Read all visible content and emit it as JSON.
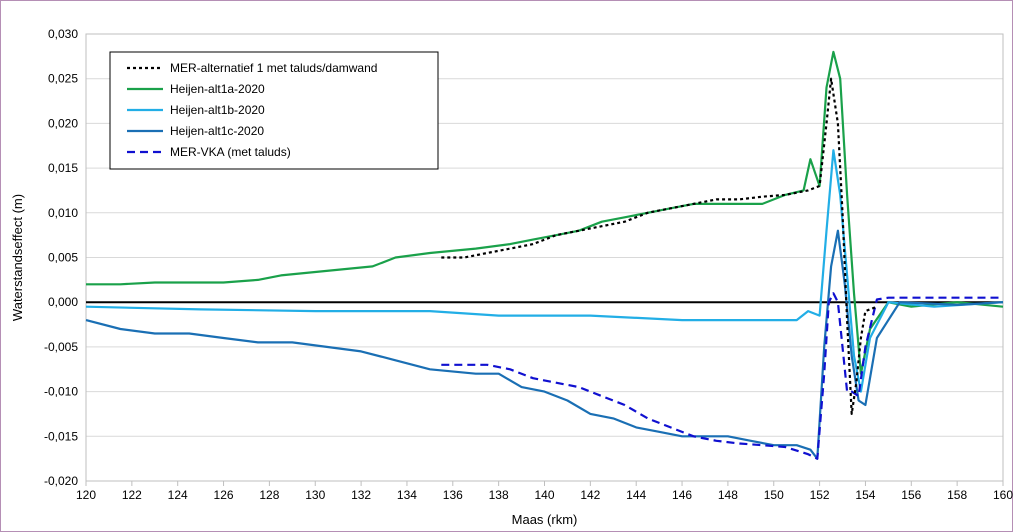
{
  "chart_data": {
    "type": "line",
    "xlabel": "Maas (rkm)",
    "ylabel": "Waterstandseffect (m)",
    "xlim": [
      120,
      160
    ],
    "ylim": [
      -0.02,
      0.03
    ],
    "x_ticks": [
      "120",
      "122",
      "124",
      "126",
      "128",
      "130",
      "132",
      "134",
      "136",
      "138",
      "140",
      "142",
      "144",
      "146",
      "148",
      "150",
      "152",
      "154",
      "156",
      "158",
      "160"
    ],
    "y_ticks": [
      "0,030",
      "0,025",
      "0,020",
      "0,015",
      "0,010",
      "0,005",
      "0,000",
      "-0,005",
      "-0,010",
      "-0,015",
      "-0,020"
    ],
    "grid": "horizontal",
    "legend_position": "top-left",
    "series": [
      {
        "name": "MER-alternatief 1 met taluds/damwand",
        "color": "#000000",
        "dash": "dotted",
        "x": [
          135.5,
          136.5,
          137.5,
          138.5,
          139.5,
          140.5,
          141.5,
          142.5,
          143.5,
          144.5,
          145.5,
          146.5,
          147.5,
          148.5,
          149.5,
          150.5,
          151.5,
          152.0,
          152.3,
          152.5,
          152.8,
          153.0,
          153.2,
          153.4,
          153.6,
          153.8,
          154.0,
          154.5
        ],
        "y": [
          0.005,
          0.005,
          0.0055,
          0.006,
          0.0065,
          0.0075,
          0.008,
          0.0085,
          0.009,
          0.01,
          0.0105,
          0.011,
          0.0115,
          0.0115,
          0.0118,
          0.012,
          0.0125,
          0.013,
          0.02,
          0.025,
          0.02,
          0.01,
          -0.002,
          -0.0125,
          -0.009,
          -0.004,
          -0.001,
          -0.0005
        ]
      },
      {
        "name": "Heijen-alt1a-2020",
        "color": "#1aa14a",
        "dash": "solid",
        "x": [
          120,
          121.5,
          123,
          124.5,
          126,
          127.5,
          128.5,
          130.5,
          132.5,
          133.5,
          135,
          137,
          138.5,
          139.5,
          140.5,
          141.5,
          142.5,
          143.5,
          144.5,
          145.5,
          146.5,
          148,
          149.5,
          150.5,
          151.3,
          151.6,
          152.0,
          152.3,
          152.6,
          152.9,
          153.2,
          153.5,
          153.8,
          154.2,
          155,
          156,
          158,
          160
        ],
        "y": [
          0.002,
          0.002,
          0.0022,
          0.0022,
          0.0022,
          0.0025,
          0.003,
          0.0035,
          0.004,
          0.005,
          0.0055,
          0.006,
          0.0065,
          0.007,
          0.0075,
          0.008,
          0.009,
          0.0095,
          0.01,
          0.0105,
          0.011,
          0.011,
          0.011,
          0.012,
          0.0125,
          0.016,
          0.013,
          0.024,
          0.028,
          0.025,
          0.012,
          0.001,
          -0.008,
          -0.003,
          0,
          -0.0005,
          0,
          -0.0005
        ]
      },
      {
        "name": "Heijen-alt1b-2020",
        "color": "#22aee6",
        "dash": "solid",
        "x": [
          120,
          125,
          130,
          135,
          138,
          142,
          146,
          148,
          151,
          151.5,
          152.0,
          152.3,
          152.6,
          152.9,
          153.2,
          153.5,
          153.8,
          154.2,
          155,
          157,
          160
        ],
        "y": [
          -0.0005,
          -0.0008,
          -0.001,
          -0.001,
          -0.0015,
          -0.0015,
          -0.002,
          -0.002,
          -0.002,
          -0.001,
          -0.0015,
          0.008,
          0.017,
          0.012,
          0.003,
          -0.006,
          -0.01,
          -0.004,
          0,
          -0.0005,
          0
        ]
      },
      {
        "name": "Heijen-alt1c-2020",
        "color": "#1a6fb4",
        "dash": "solid",
        "x": [
          120,
          121.5,
          123,
          124.5,
          126,
          127.5,
          129,
          130.5,
          132,
          133.5,
          135,
          137,
          138,
          139,
          140,
          141,
          142,
          143,
          144,
          145,
          146,
          147,
          148,
          149,
          150,
          151,
          151.6,
          151.9,
          152.2,
          152.5,
          152.8,
          153.1,
          153.4,
          153.7,
          154.0,
          154.5,
          155.5,
          158,
          160
        ],
        "y": [
          -0.002,
          -0.003,
          -0.0035,
          -0.0035,
          -0.004,
          -0.0045,
          -0.0045,
          -0.005,
          -0.0055,
          -0.0065,
          -0.0075,
          -0.008,
          -0.008,
          -0.0095,
          -0.01,
          -0.011,
          -0.0125,
          -0.013,
          -0.014,
          -0.0145,
          -0.015,
          -0.015,
          -0.015,
          -0.0155,
          -0.016,
          -0.016,
          -0.0165,
          -0.0175,
          -0.005,
          0.004,
          0.008,
          0.002,
          -0.006,
          -0.011,
          -0.0115,
          -0.004,
          0,
          -0.0003,
          0
        ]
      },
      {
        "name": "MER-VKA (met taluds)",
        "color": "#1010d0",
        "dash": "dashed",
        "x": [
          135.5,
          136.5,
          137.5,
          138.5,
          139.5,
          140.5,
          141.5,
          142.5,
          143.5,
          144.5,
          145.5,
          146.5,
          147.5,
          148.5,
          149.5,
          150.5,
          151.5,
          151.9,
          152.2,
          152.4,
          152.6,
          152.8,
          153.0,
          153.2,
          153.4,
          153.7,
          154.0,
          154.5,
          155,
          156,
          158,
          160
        ],
        "y": [
          -0.007,
          -0.007,
          -0.007,
          -0.0075,
          -0.0085,
          -0.009,
          -0.0095,
          -0.0105,
          -0.0115,
          -0.013,
          -0.014,
          -0.015,
          -0.0155,
          -0.0158,
          -0.016,
          -0.0162,
          -0.017,
          -0.0175,
          -0.008,
          0,
          0.001,
          0,
          -0.005,
          -0.01,
          -0.01,
          -0.0105,
          -0.005,
          0.0003,
          0.0005,
          0.0005,
          0.0005,
          0.0005
        ]
      }
    ]
  }
}
